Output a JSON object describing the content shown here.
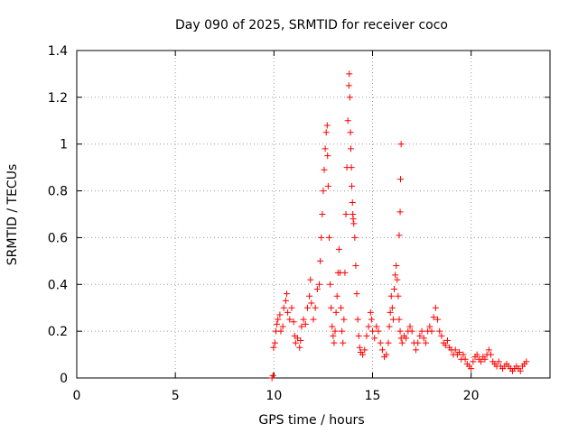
{
  "chart_data": {
    "type": "scatter",
    "title": "Day 090 of 2025, SRMTID for receiver coco",
    "xlabel": "GPS time / hours",
    "ylabel": "SRMTID / TECUs",
    "xlim": [
      0,
      24
    ],
    "ylim": [
      0,
      1.4
    ],
    "x_ticks": [
      0,
      5,
      10,
      15,
      20
    ],
    "x_tick_labels": [
      "0",
      "5",
      "10",
      "15",
      "20"
    ],
    "y_ticks": [
      0,
      0.2,
      0.4,
      0.6,
      0.8,
      1.0,
      1.2,
      1.4
    ],
    "y_tick_labels": [
      "0",
      "0.2",
      "0.4",
      "0.6",
      "0.8",
      "1",
      "1.2",
      "1.4"
    ],
    "grid": true,
    "marker": "+",
    "color": "#ff0000",
    "series": [
      {
        "name": "SRMTID",
        "points": [
          [
            9.9,
            0.0
          ],
          [
            9.95,
            0.01
          ],
          [
            9.98,
            0.13
          ],
          [
            10.05,
            0.15
          ],
          [
            10.1,
            0.2
          ],
          [
            10.15,
            0.23
          ],
          [
            10.2,
            0.25
          ],
          [
            10.3,
            0.27
          ],
          [
            10.35,
            0.2
          ],
          [
            10.45,
            0.22
          ],
          [
            10.5,
            0.3
          ],
          [
            10.6,
            0.33
          ],
          [
            10.65,
            0.36
          ],
          [
            10.7,
            0.28
          ],
          [
            10.8,
            0.25
          ],
          [
            10.9,
            0.3
          ],
          [
            11.0,
            0.24
          ],
          [
            11.05,
            0.18
          ],
          [
            11.1,
            0.15
          ],
          [
            11.2,
            0.17
          ],
          [
            11.3,
            0.13
          ],
          [
            11.35,
            0.16
          ],
          [
            11.4,
            0.22
          ],
          [
            11.5,
            0.25
          ],
          [
            11.6,
            0.23
          ],
          [
            11.7,
            0.3
          ],
          [
            11.8,
            0.35
          ],
          [
            11.85,
            0.42
          ],
          [
            11.9,
            0.32
          ],
          [
            12.0,
            0.25
          ],
          [
            12.1,
            0.3
          ],
          [
            12.2,
            0.38
          ],
          [
            12.3,
            0.4
          ],
          [
            12.35,
            0.5
          ],
          [
            12.4,
            0.6
          ],
          [
            12.45,
            0.7
          ],
          [
            12.5,
            0.8
          ],
          [
            12.55,
            0.89
          ],
          [
            12.6,
            0.98
          ],
          [
            12.65,
            1.05
          ],
          [
            12.7,
            1.08
          ],
          [
            12.72,
            0.95
          ],
          [
            12.75,
            0.82
          ],
          [
            12.8,
            0.6
          ],
          [
            12.85,
            0.4
          ],
          [
            12.9,
            0.3
          ],
          [
            12.95,
            0.22
          ],
          [
            13.0,
            0.18
          ],
          [
            13.05,
            0.15
          ],
          [
            13.1,
            0.2
          ],
          [
            13.15,
            0.28
          ],
          [
            13.2,
            0.35
          ],
          [
            13.25,
            0.45
          ],
          [
            13.3,
            0.55
          ],
          [
            13.35,
            0.45
          ],
          [
            13.4,
            0.3
          ],
          [
            13.45,
            0.2
          ],
          [
            13.5,
            0.15
          ],
          [
            13.55,
            0.25
          ],
          [
            13.6,
            0.45
          ],
          [
            13.65,
            0.7
          ],
          [
            13.7,
            0.9
          ],
          [
            13.75,
            1.1
          ],
          [
            13.8,
            1.25
          ],
          [
            13.82,
            1.3
          ],
          [
            13.85,
            1.2
          ],
          [
            13.88,
            1.05
          ],
          [
            13.9,
            0.98
          ],
          [
            13.93,
            0.9
          ],
          [
            13.95,
            0.82
          ],
          [
            13.98,
            0.75
          ],
          [
            14.0,
            0.7
          ],
          [
            14.02,
            0.68
          ],
          [
            14.05,
            0.66
          ],
          [
            14.1,
            0.6
          ],
          [
            14.15,
            0.48
          ],
          [
            14.2,
            0.36
          ],
          [
            14.25,
            0.25
          ],
          [
            14.3,
            0.18
          ],
          [
            14.35,
            0.13
          ],
          [
            14.4,
            0.11
          ],
          [
            14.5,
            0.1
          ],
          [
            14.6,
            0.12
          ],
          [
            14.7,
            0.18
          ],
          [
            14.8,
            0.22
          ],
          [
            14.9,
            0.28
          ],
          [
            14.95,
            0.25
          ],
          [
            15.0,
            0.2
          ],
          [
            15.1,
            0.17
          ],
          [
            15.2,
            0.22
          ],
          [
            15.3,
            0.2
          ],
          [
            15.4,
            0.15
          ],
          [
            15.5,
            0.12
          ],
          [
            15.6,
            0.09
          ],
          [
            15.7,
            0.1
          ],
          [
            15.8,
            0.15
          ],
          [
            15.85,
            0.22
          ],
          [
            15.9,
            0.28
          ],
          [
            15.95,
            0.35
          ],
          [
            16.0,
            0.3
          ],
          [
            16.05,
            0.25
          ],
          [
            16.1,
            0.38
          ],
          [
            16.15,
            0.44
          ],
          [
            16.2,
            0.48
          ],
          [
            16.25,
            0.42
          ],
          [
            16.3,
            0.35
          ],
          [
            16.35,
            0.25
          ],
          [
            16.4,
            0.2
          ],
          [
            16.45,
            0.17
          ],
          [
            16.5,
            0.15
          ],
          [
            16.6,
            0.18
          ],
          [
            16.7,
            0.17
          ],
          [
            16.8,
            0.2
          ],
          [
            16.9,
            0.22
          ],
          [
            17.0,
            0.2
          ],
          [
            17.1,
            0.15
          ],
          [
            17.2,
            0.12
          ],
          [
            17.3,
            0.15
          ],
          [
            17.4,
            0.18
          ],
          [
            17.5,
            0.2
          ],
          [
            17.6,
            0.17
          ],
          [
            17.7,
            0.15
          ],
          [
            17.8,
            0.2
          ],
          [
            17.9,
            0.22
          ],
          [
            18.0,
            0.2
          ],
          [
            18.1,
            0.26
          ],
          [
            18.2,
            0.3
          ],
          [
            18.3,
            0.25
          ],
          [
            18.4,
            0.2
          ],
          [
            18.5,
            0.18
          ],
          [
            18.6,
            0.15
          ],
          [
            18.7,
            0.14
          ],
          [
            18.8,
            0.16
          ],
          [
            18.9,
            0.13
          ],
          [
            19.0,
            0.12
          ],
          [
            19.1,
            0.1
          ],
          [
            19.2,
            0.12
          ],
          [
            19.3,
            0.1
          ],
          [
            19.4,
            0.11
          ],
          [
            19.5,
            0.08
          ],
          [
            19.6,
            0.1
          ],
          [
            19.7,
            0.08
          ],
          [
            19.8,
            0.06
          ],
          [
            19.9,
            0.05
          ],
          [
            20.0,
            0.04
          ],
          [
            20.1,
            0.07
          ],
          [
            20.2,
            0.09
          ],
          [
            20.3,
            0.1
          ],
          [
            20.4,
            0.08
          ],
          [
            20.5,
            0.07
          ],
          [
            20.6,
            0.09
          ],
          [
            20.7,
            0.08
          ],
          [
            20.8,
            0.1
          ],
          [
            20.9,
            0.12
          ],
          [
            21.0,
            0.1
          ],
          [
            21.1,
            0.07
          ],
          [
            21.2,
            0.06
          ],
          [
            21.3,
            0.05
          ],
          [
            21.4,
            0.07
          ],
          [
            21.5,
            0.05
          ],
          [
            21.6,
            0.04
          ],
          [
            21.7,
            0.05
          ],
          [
            21.8,
            0.06
          ],
          [
            21.9,
            0.05
          ],
          [
            22.0,
            0.04
          ],
          [
            22.1,
            0.03
          ],
          [
            22.2,
            0.04
          ],
          [
            22.3,
            0.05
          ],
          [
            22.4,
            0.04
          ],
          [
            22.5,
            0.03
          ],
          [
            22.6,
            0.05
          ],
          [
            22.7,
            0.06
          ],
          [
            22.8,
            0.07
          ],
          [
            16.35,
            0.61
          ],
          [
            16.4,
            0.71
          ],
          [
            16.42,
            0.85
          ],
          [
            16.45,
            1.0
          ]
        ]
      }
    ]
  }
}
